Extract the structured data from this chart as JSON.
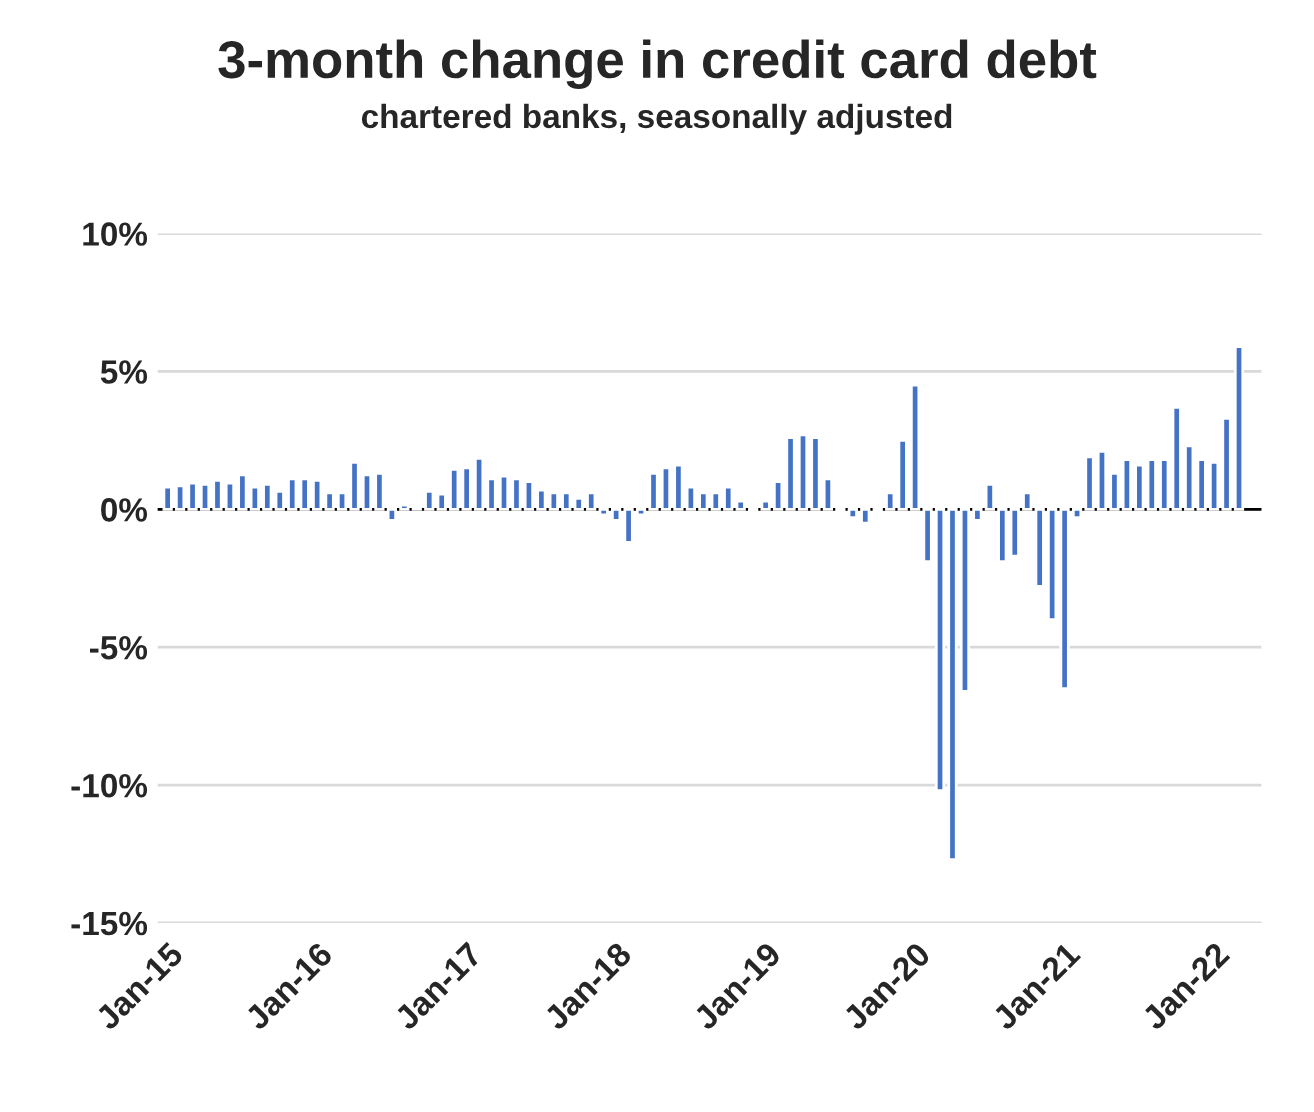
{
  "chart_data": {
    "type": "bar",
    "title": "3-month change in credit card debt",
    "subtitle": "chartered banks, seasonally adjusted",
    "categories": [
      "Jan-15",
      null,
      null,
      null,
      null,
      null,
      null,
      null,
      null,
      null,
      null,
      null,
      "Jan-16",
      null,
      null,
      null,
      null,
      null,
      null,
      null,
      null,
      null,
      null,
      null,
      "Jan-17",
      null,
      null,
      null,
      null,
      null,
      null,
      null,
      null,
      null,
      null,
      null,
      "Jan-18",
      null,
      null,
      null,
      null,
      null,
      null,
      null,
      null,
      null,
      null,
      null,
      "Jan-19",
      null,
      null,
      null,
      null,
      null,
      null,
      null,
      null,
      null,
      null,
      null,
      "Jan-20",
      null,
      null,
      null,
      null,
      null,
      null,
      null,
      null,
      null,
      null,
      null,
      "Jan-21",
      null,
      null,
      null,
      null,
      null,
      null,
      null,
      null,
      null,
      null,
      null,
      "Jan-22",
      null,
      null,
      null
    ],
    "values": [
      0.8,
      0.85,
      0.95,
      0.9,
      1.05,
      0.95,
      1.25,
      0.8,
      0.9,
      0.65,
      1.1,
      1.1,
      1.05,
      0.6,
      0.6,
      1.7,
      1.25,
      1.3,
      -0.4,
      0.15,
      0.1,
      0.65,
      0.55,
      1.45,
      1.5,
      1.85,
      1.1,
      1.2,
      1.1,
      1.0,
      0.7,
      0.6,
      0.6,
      0.4,
      0.6,
      -0.2,
      -0.4,
      -1.2,
      -0.2,
      1.3,
      1.5,
      1.6,
      0.8,
      0.6,
      0.6,
      0.8,
      0.3,
      -0.1,
      0.3,
      1.0,
      2.6,
      2.7,
      2.6,
      1.1,
      -0.1,
      -0.3,
      -0.5,
      -0.1,
      0.6,
      2.5,
      4.5,
      -1.9,
      -10.2,
      -12.7,
      -6.6,
      -0.4,
      0.9,
      -1.9,
      -1.7,
      0.6,
      -2.8,
      -4.0,
      -6.5,
      -0.3,
      1.9,
      2.1,
      1.3,
      1.8,
      1.6,
      1.8,
      1.8,
      3.7,
      2.3,
      1.8,
      1.7,
      3.3,
      5.9,
      null
    ],
    "color": "#4472c4",
    "ylim": [
      -15,
      10
    ],
    "yticks": [
      {
        "value": -15,
        "label": "-15%"
      },
      {
        "value": -10,
        "label": "-10%"
      },
      {
        "value": -5,
        "label": "-5%"
      },
      {
        "value": 0,
        "label": "0%"
      },
      {
        "value": 5,
        "label": "5%"
      },
      {
        "value": 10,
        "label": "10%"
      }
    ],
    "grid": "y",
    "legend": false
  }
}
